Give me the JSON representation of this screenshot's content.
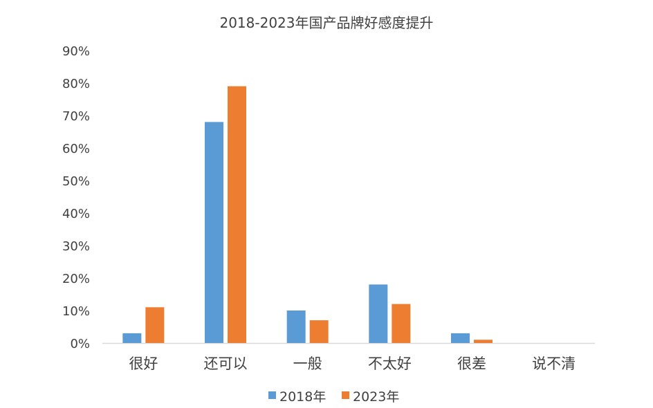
{
  "chart_data": {
    "type": "bar",
    "title": "2018-2023年国产品牌好感度提升",
    "categories": [
      "很好",
      "还可以",
      "一般",
      "不太好",
      "很差",
      "说不清"
    ],
    "series": [
      {
        "name": "2018年",
        "color": "#5B9BD5",
        "values": [
          3,
          68,
          10,
          18,
          3,
          0
        ]
      },
      {
        "name": "2023年",
        "color": "#ED7D31",
        "values": [
          11,
          79,
          7,
          12,
          1,
          0
        ]
      }
    ],
    "y_unit": "%",
    "yticks": [
      "0%",
      "10%",
      "20%",
      "30%",
      "40%",
      "50%",
      "60%",
      "70%",
      "80%",
      "90%"
    ],
    "ylim": [
      0,
      90
    ],
    "grid": false,
    "legend_position": "bottom"
  }
}
